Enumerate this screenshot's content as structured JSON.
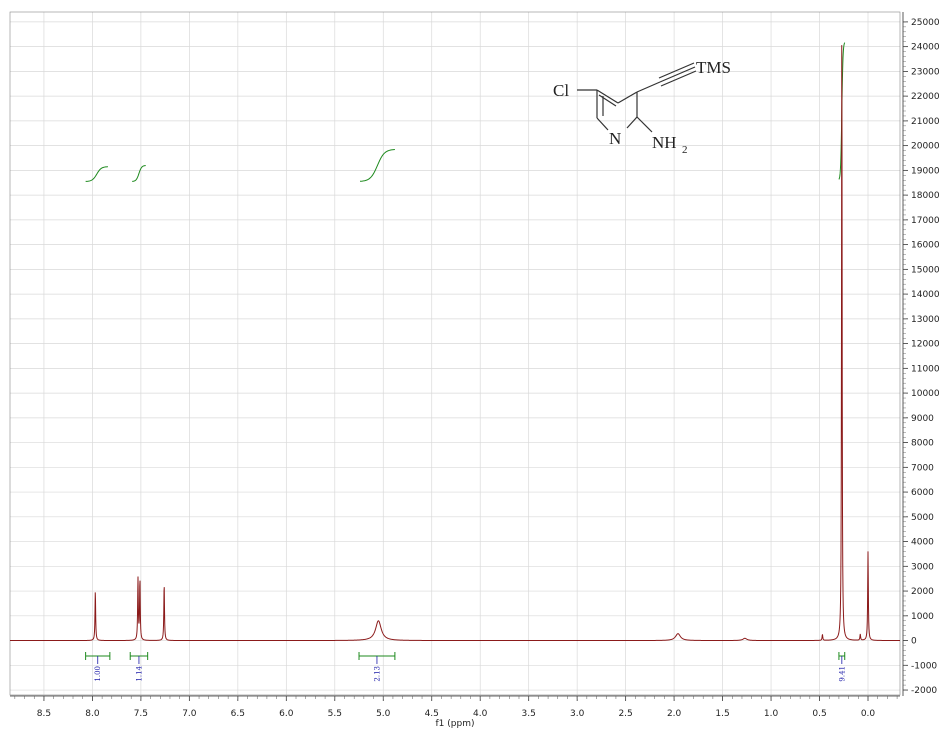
{
  "chart_data": {
    "type": "line",
    "title": "",
    "xlabel": "f1 (ppm)",
    "ylabel": "",
    "xlim": [
      8.85,
      -0.33
    ],
    "ylim": [
      -2200,
      25400
    ],
    "x_ticks": [
      8.5,
      8.0,
      7.5,
      7.0,
      6.5,
      6.0,
      5.5,
      5.0,
      4.5,
      4.0,
      3.5,
      3.0,
      2.5,
      2.0,
      1.5,
      1.0,
      0.5,
      0.0
    ],
    "y_ticks": [
      25000,
      24000,
      23000,
      22000,
      21000,
      20000,
      19000,
      18000,
      17000,
      16000,
      15000,
      14000,
      13000,
      12000,
      11000,
      10000,
      9000,
      8000,
      7000,
      6000,
      5000,
      4000,
      3000,
      2000,
      1000,
      0,
      -1000,
      -2000
    ],
    "grid": true,
    "series": [
      {
        "color": "#8b1a1a",
        "peaks": [
          {
            "x": 7.97,
            "y": 2000
          },
          {
            "x": 7.53,
            "y": 2500
          },
          {
            "x": 7.51,
            "y": 2450
          },
          {
            "x": 7.26,
            "y": 2300
          },
          {
            "x": 5.05,
            "y": 800
          },
          {
            "x": 1.96,
            "y": 280
          },
          {
            "x": 1.27,
            "y": 90
          },
          {
            "x": 0.47,
            "y": 250
          },
          {
            "x": 0.27,
            "y": 25400
          },
          {
            "x": 0.08,
            "y": 250
          },
          {
            "x": 0.0,
            "y": 3600
          }
        ]
      }
    ],
    "integrals": [
      {
        "from": 8.07,
        "to": 7.82,
        "value": "1.00"
      },
      {
        "from": 7.61,
        "to": 7.43,
        "value": "1.14"
      },
      {
        "from": 5.25,
        "to": 4.88,
        "value": "2.13"
      },
      {
        "from": 0.3,
        "to": 0.24,
        "value": "9.41"
      }
    ],
    "integral_curves": [
      {
        "from": 8.07,
        "to": 7.84,
        "y_start": 18550,
        "y_end": 19150
      },
      {
        "from": 7.59,
        "to": 7.45,
        "y_start": 18550,
        "y_end": 19200
      },
      {
        "from": 5.24,
        "to": 4.88,
        "y_start": 18550,
        "y_end": 19850
      },
      {
        "from": 0.3,
        "to": 0.24,
        "y_start": 18600,
        "y_end": 24200
      }
    ]
  },
  "molecule": {
    "atoms": {
      "cl": "Cl",
      "tms": "TMS",
      "n": "N",
      "nh": "NH",
      "nh_sub": "2"
    }
  }
}
